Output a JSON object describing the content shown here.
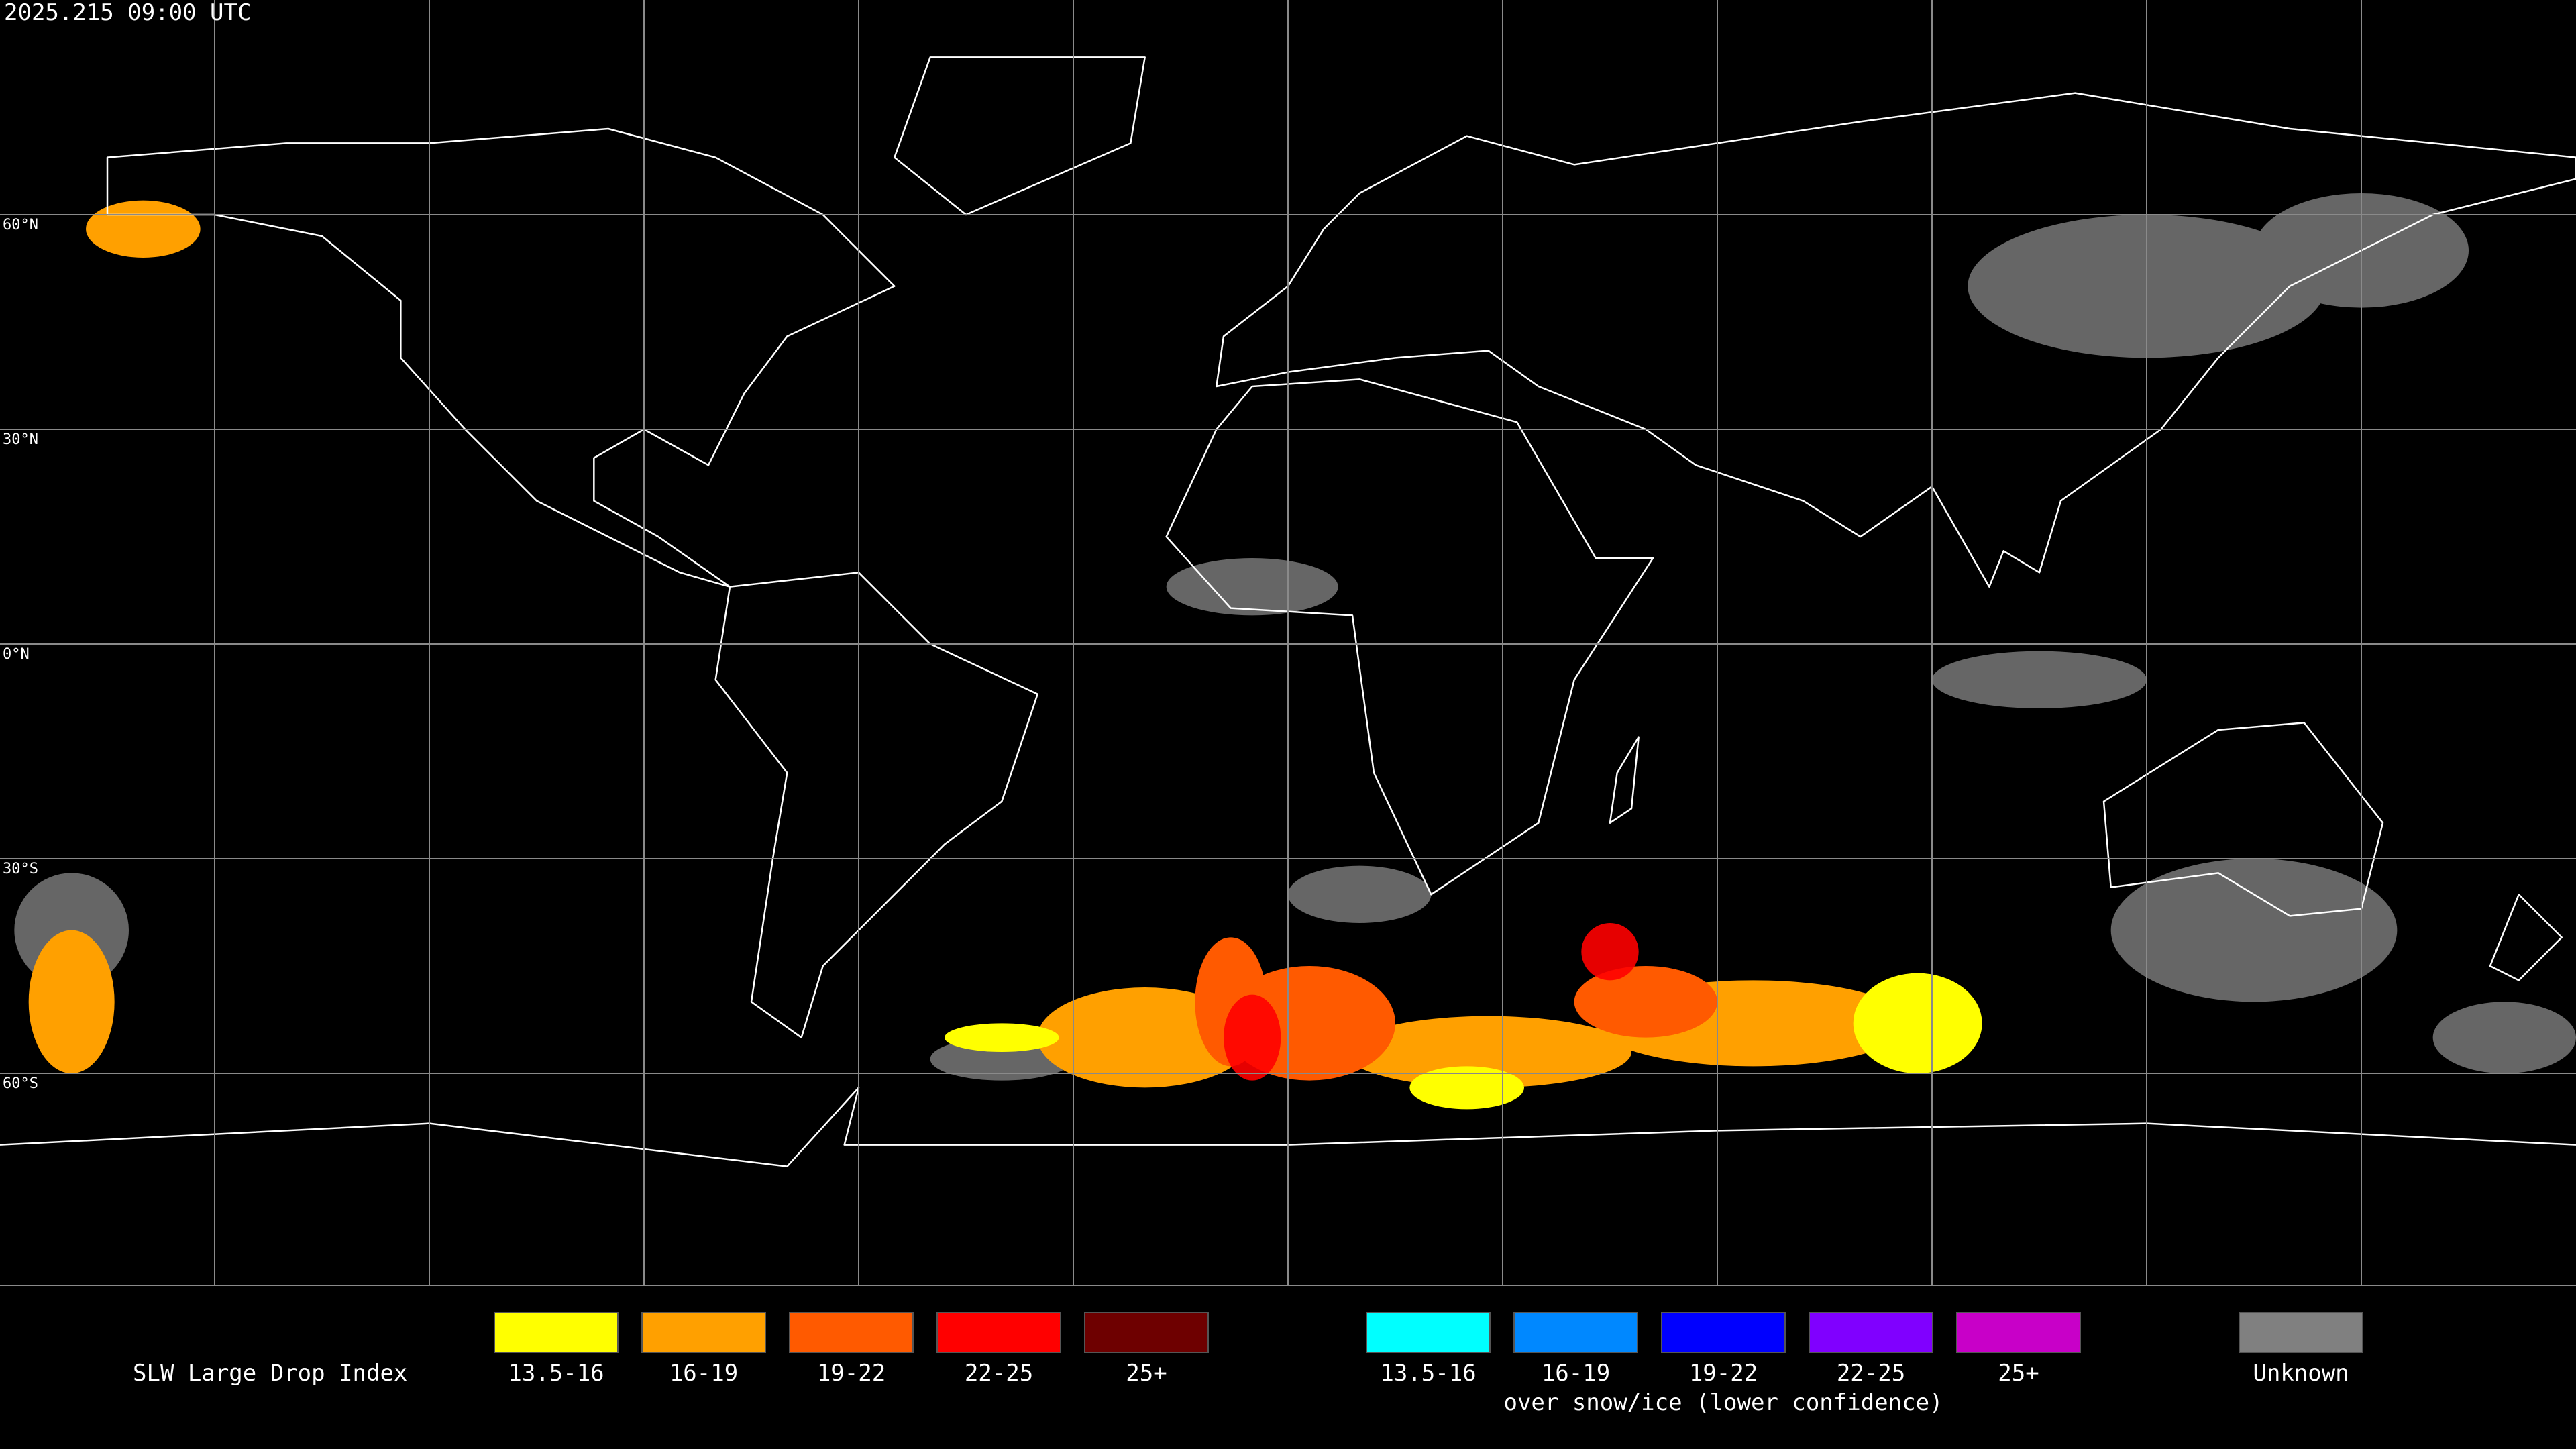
{
  "title": "2025.215 09:00 UTC",
  "latitude_labels": [
    "60°N",
    "30°N",
    "0°N",
    "30°S",
    "60°S"
  ],
  "legend": {
    "title": "SLW Large Drop Index",
    "groups": [
      {
        "items": [
          {
            "label": "13.5-16",
            "color": "#ffff00"
          },
          {
            "label": "16-19",
            "color": "#ffa000"
          },
          {
            "label": "19-22",
            "color": "#ff5a00"
          },
          {
            "label": "22-25",
            "color": "#ff0000"
          },
          {
            "label": "25+",
            "color": "#6e0000"
          }
        ]
      },
      {
        "items": [
          {
            "label": "13.5-16",
            "color": "#00ffff"
          },
          {
            "label": "16-19",
            "color": "#0088ff"
          },
          {
            "label": "19-22",
            "color": "#0000ff"
          },
          {
            "label": "22-25",
            "color": "#8000ff"
          },
          {
            "label": "25+",
            "color": "#c800c8"
          }
        ],
        "note": "over snow/ice (lower confidence)"
      }
    ],
    "unknown": {
      "label": "Unknown",
      "color": "#808080"
    }
  }
}
